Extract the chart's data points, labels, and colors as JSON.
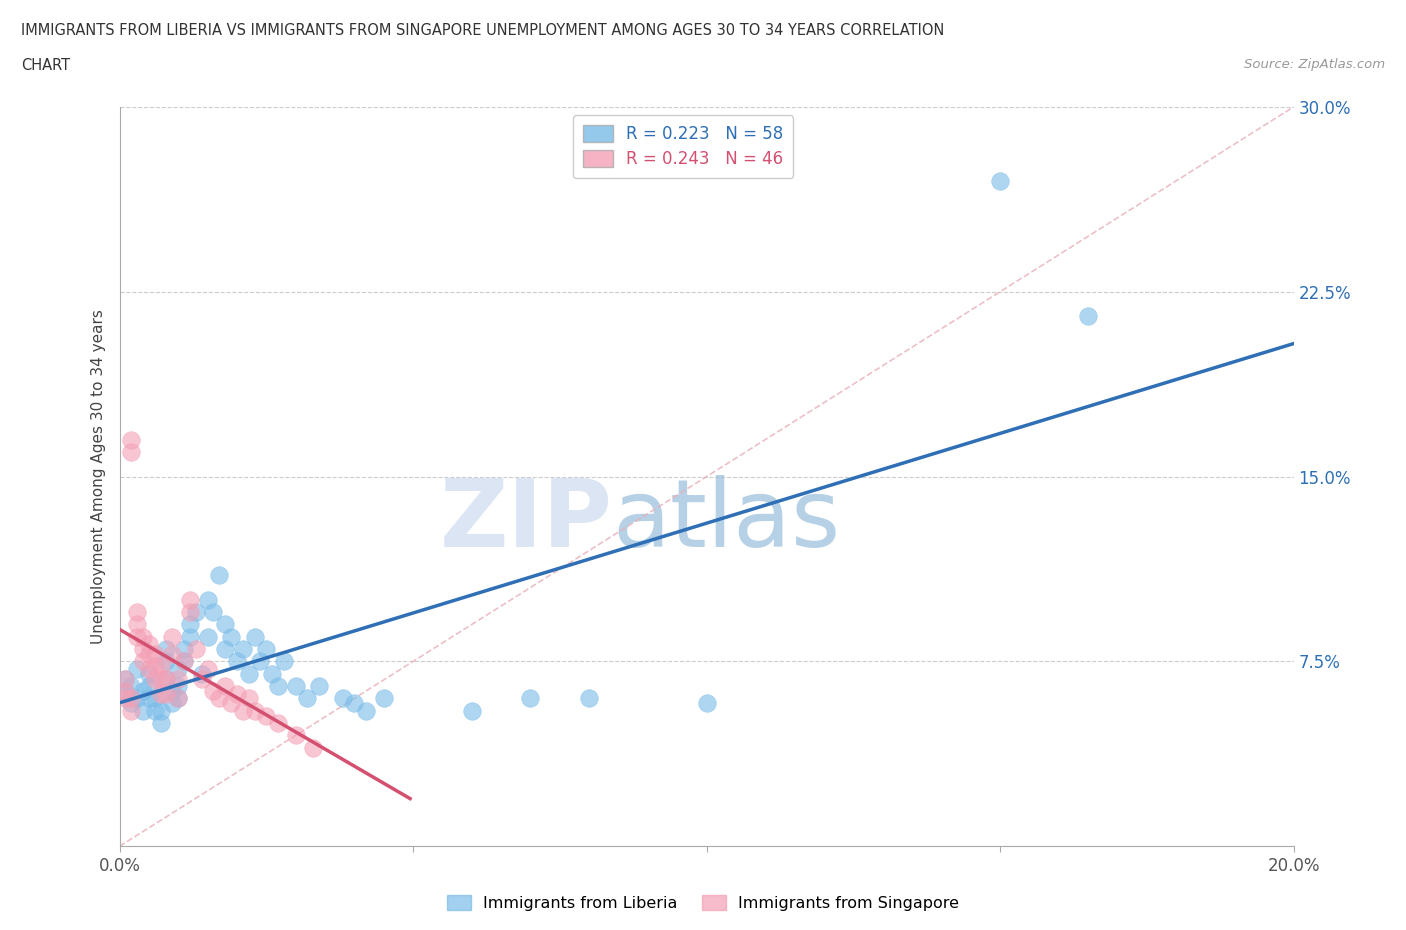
{
  "title_line1": "IMMIGRANTS FROM LIBERIA VS IMMIGRANTS FROM SINGAPORE UNEMPLOYMENT AMONG AGES 30 TO 34 YEARS CORRELATION",
  "title_line2": "CHART",
  "source_text": "Source: ZipAtlas.com",
  "ylabel": "Unemployment Among Ages 30 to 34 years",
  "xlim": [
    0.0,
    0.2
  ],
  "ylim": [
    0.0,
    0.3
  ],
  "xticks": [
    0.0,
    0.05,
    0.1,
    0.15,
    0.2
  ],
  "yticks": [
    0.0,
    0.075,
    0.15,
    0.225,
    0.3
  ],
  "liberia_color": "#7bbce8",
  "singapore_color": "#f4a0b5",
  "liberia_line_color": "#2e6fb5",
  "singapore_line_color": "#d45070",
  "diag_color": "#e8b0b8",
  "liberia_R": 0.223,
  "liberia_N": 58,
  "singapore_R": 0.243,
  "singapore_N": 46,
  "liberia_x": [
    0.001,
    0.001,
    0.002,
    0.002,
    0.003,
    0.003,
    0.004,
    0.004,
    0.005,
    0.005,
    0.005,
    0.006,
    0.006,
    0.007,
    0.007,
    0.008,
    0.008,
    0.008,
    0.009,
    0.009,
    0.01,
    0.01,
    0.01,
    0.011,
    0.011,
    0.012,
    0.012,
    0.013,
    0.014,
    0.015,
    0.015,
    0.016,
    0.017,
    0.018,
    0.018,
    0.019,
    0.02,
    0.021,
    0.022,
    0.023,
    0.024,
    0.025,
    0.026,
    0.027,
    0.028,
    0.03,
    0.032,
    0.034,
    0.038,
    0.04,
    0.042,
    0.045,
    0.06,
    0.07,
    0.08,
    0.1,
    0.15,
    0.165
  ],
  "liberia_y": [
    0.063,
    0.068,
    0.058,
    0.065,
    0.06,
    0.072,
    0.055,
    0.063,
    0.06,
    0.065,
    0.07,
    0.055,
    0.06,
    0.05,
    0.055,
    0.068,
    0.075,
    0.08,
    0.058,
    0.063,
    0.065,
    0.06,
    0.072,
    0.075,
    0.08,
    0.085,
    0.09,
    0.095,
    0.07,
    0.085,
    0.1,
    0.095,
    0.11,
    0.09,
    0.08,
    0.085,
    0.075,
    0.08,
    0.07,
    0.085,
    0.075,
    0.08,
    0.07,
    0.065,
    0.075,
    0.065,
    0.06,
    0.065,
    0.06,
    0.058,
    0.055,
    0.06,
    0.055,
    0.06,
    0.06,
    0.058,
    0.27,
    0.215
  ],
  "singapore_x": [
    0.001,
    0.001,
    0.001,
    0.002,
    0.002,
    0.002,
    0.002,
    0.003,
    0.003,
    0.003,
    0.004,
    0.004,
    0.004,
    0.005,
    0.005,
    0.005,
    0.006,
    0.006,
    0.006,
    0.007,
    0.007,
    0.007,
    0.008,
    0.008,
    0.009,
    0.009,
    0.01,
    0.01,
    0.011,
    0.012,
    0.012,
    0.013,
    0.014,
    0.015,
    0.016,
    0.017,
    0.018,
    0.019,
    0.02,
    0.021,
    0.022,
    0.023,
    0.025,
    0.027,
    0.03,
    0.033
  ],
  "singapore_y": [
    0.06,
    0.063,
    0.068,
    0.055,
    0.06,
    0.16,
    0.165,
    0.085,
    0.09,
    0.095,
    0.075,
    0.08,
    0.085,
    0.072,
    0.078,
    0.082,
    0.068,
    0.073,
    0.078,
    0.062,
    0.068,
    0.073,
    0.062,
    0.068,
    0.078,
    0.085,
    0.06,
    0.068,
    0.075,
    0.095,
    0.1,
    0.08,
    0.068,
    0.072,
    0.063,
    0.06,
    0.065,
    0.058,
    0.062,
    0.055,
    0.06,
    0.055,
    0.053,
    0.05,
    0.045,
    0.04
  ],
  "background_color": "#ffffff",
  "grid_color": "#cccccc",
  "watermark_zip": "ZIP",
  "watermark_atlas": "atlas"
}
